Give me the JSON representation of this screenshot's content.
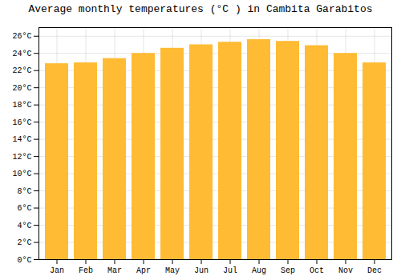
{
  "chart_data": {
    "type": "bar",
    "title": "Average monthly temperatures (°C ) in Cambita Garabitos",
    "categories": [
      "Jan",
      "Feb",
      "Mar",
      "Apr",
      "May",
      "Jun",
      "Jul",
      "Aug",
      "Sep",
      "Oct",
      "Nov",
      "Dec"
    ],
    "values": [
      22.8,
      22.9,
      23.4,
      24.0,
      24.6,
      25.0,
      25.3,
      25.6,
      25.4,
      24.9,
      24.0,
      22.9
    ],
    "color": "#FFBB33",
    "ylim": [
      0,
      27
    ],
    "yticks": [
      {
        "value": 0,
        "label": "0°C"
      },
      {
        "value": 2,
        "label": "2°C"
      },
      {
        "value": 4,
        "label": "4°C"
      },
      {
        "value": 6,
        "label": "6°C"
      },
      {
        "value": 8,
        "label": "8°C"
      },
      {
        "value": 10,
        "label": "10°C"
      },
      {
        "value": 12,
        "label": "12°C"
      },
      {
        "value": 14,
        "label": "14°C"
      },
      {
        "value": 16,
        "label": "16°C"
      },
      {
        "value": 18,
        "label": "18°C"
      },
      {
        "value": 20,
        "label": "20°C"
      },
      {
        "value": 22,
        "label": "22°C"
      },
      {
        "value": 24,
        "label": "24°C"
      },
      {
        "value": 26,
        "label": "26°C"
      }
    ],
    "grid": true
  }
}
